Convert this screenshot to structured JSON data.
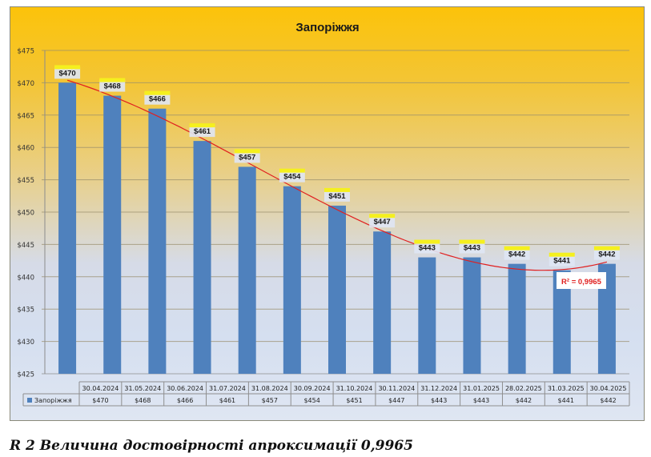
{
  "chart_data": {
    "type": "bar",
    "title": "Запоріжжя",
    "xlabel": "",
    "ylabel": "",
    "ylim": [
      425,
      475
    ],
    "ytick_step": 5,
    "ytick_labels": [
      "$425",
      "$430",
      "$435",
      "$440",
      "$445",
      "$450",
      "$455",
      "$460",
      "$465",
      "$470",
      "$475"
    ],
    "grid": true,
    "legend": "in data table, bottom-left",
    "categories": [
      "30.04.2024",
      "31.05.2024",
      "30.06.2024",
      "31.07.2024",
      "31.08.2024",
      "30.09.2024",
      "31.10.2024",
      "30.11.2024",
      "31.12.2024",
      "31.01.2025",
      "28.02.2025",
      "31.03.2025",
      "30.04.2025"
    ],
    "series": [
      {
        "name": "Запоріжжя",
        "values": [
          470,
          468,
          466,
          461,
          457,
          454,
          451,
          447,
          443,
          443,
          442,
          441,
          442
        ],
        "labels": [
          "$470",
          "$468",
          "$466",
          "$461",
          "$457",
          "$454",
          "$451",
          "$447",
          "$443",
          "$443",
          "$442",
          "$441",
          "$442"
        ],
        "color": "#4f81bd"
      }
    ],
    "trendline": {
      "type": "polynomial",
      "color": "#e02020",
      "r_squared_label": "R² = 0,9965"
    },
    "data_table": {
      "legend_label": "Запоріжжя",
      "values": [
        "$470",
        "$468",
        "$466",
        "$461",
        "$457",
        "$454",
        "$451",
        "$447",
        "$443",
        "$443",
        "$442",
        "$441",
        "$442"
      ]
    }
  },
  "caption": "R 2 Величина достовірності апроксимації 0,9965"
}
